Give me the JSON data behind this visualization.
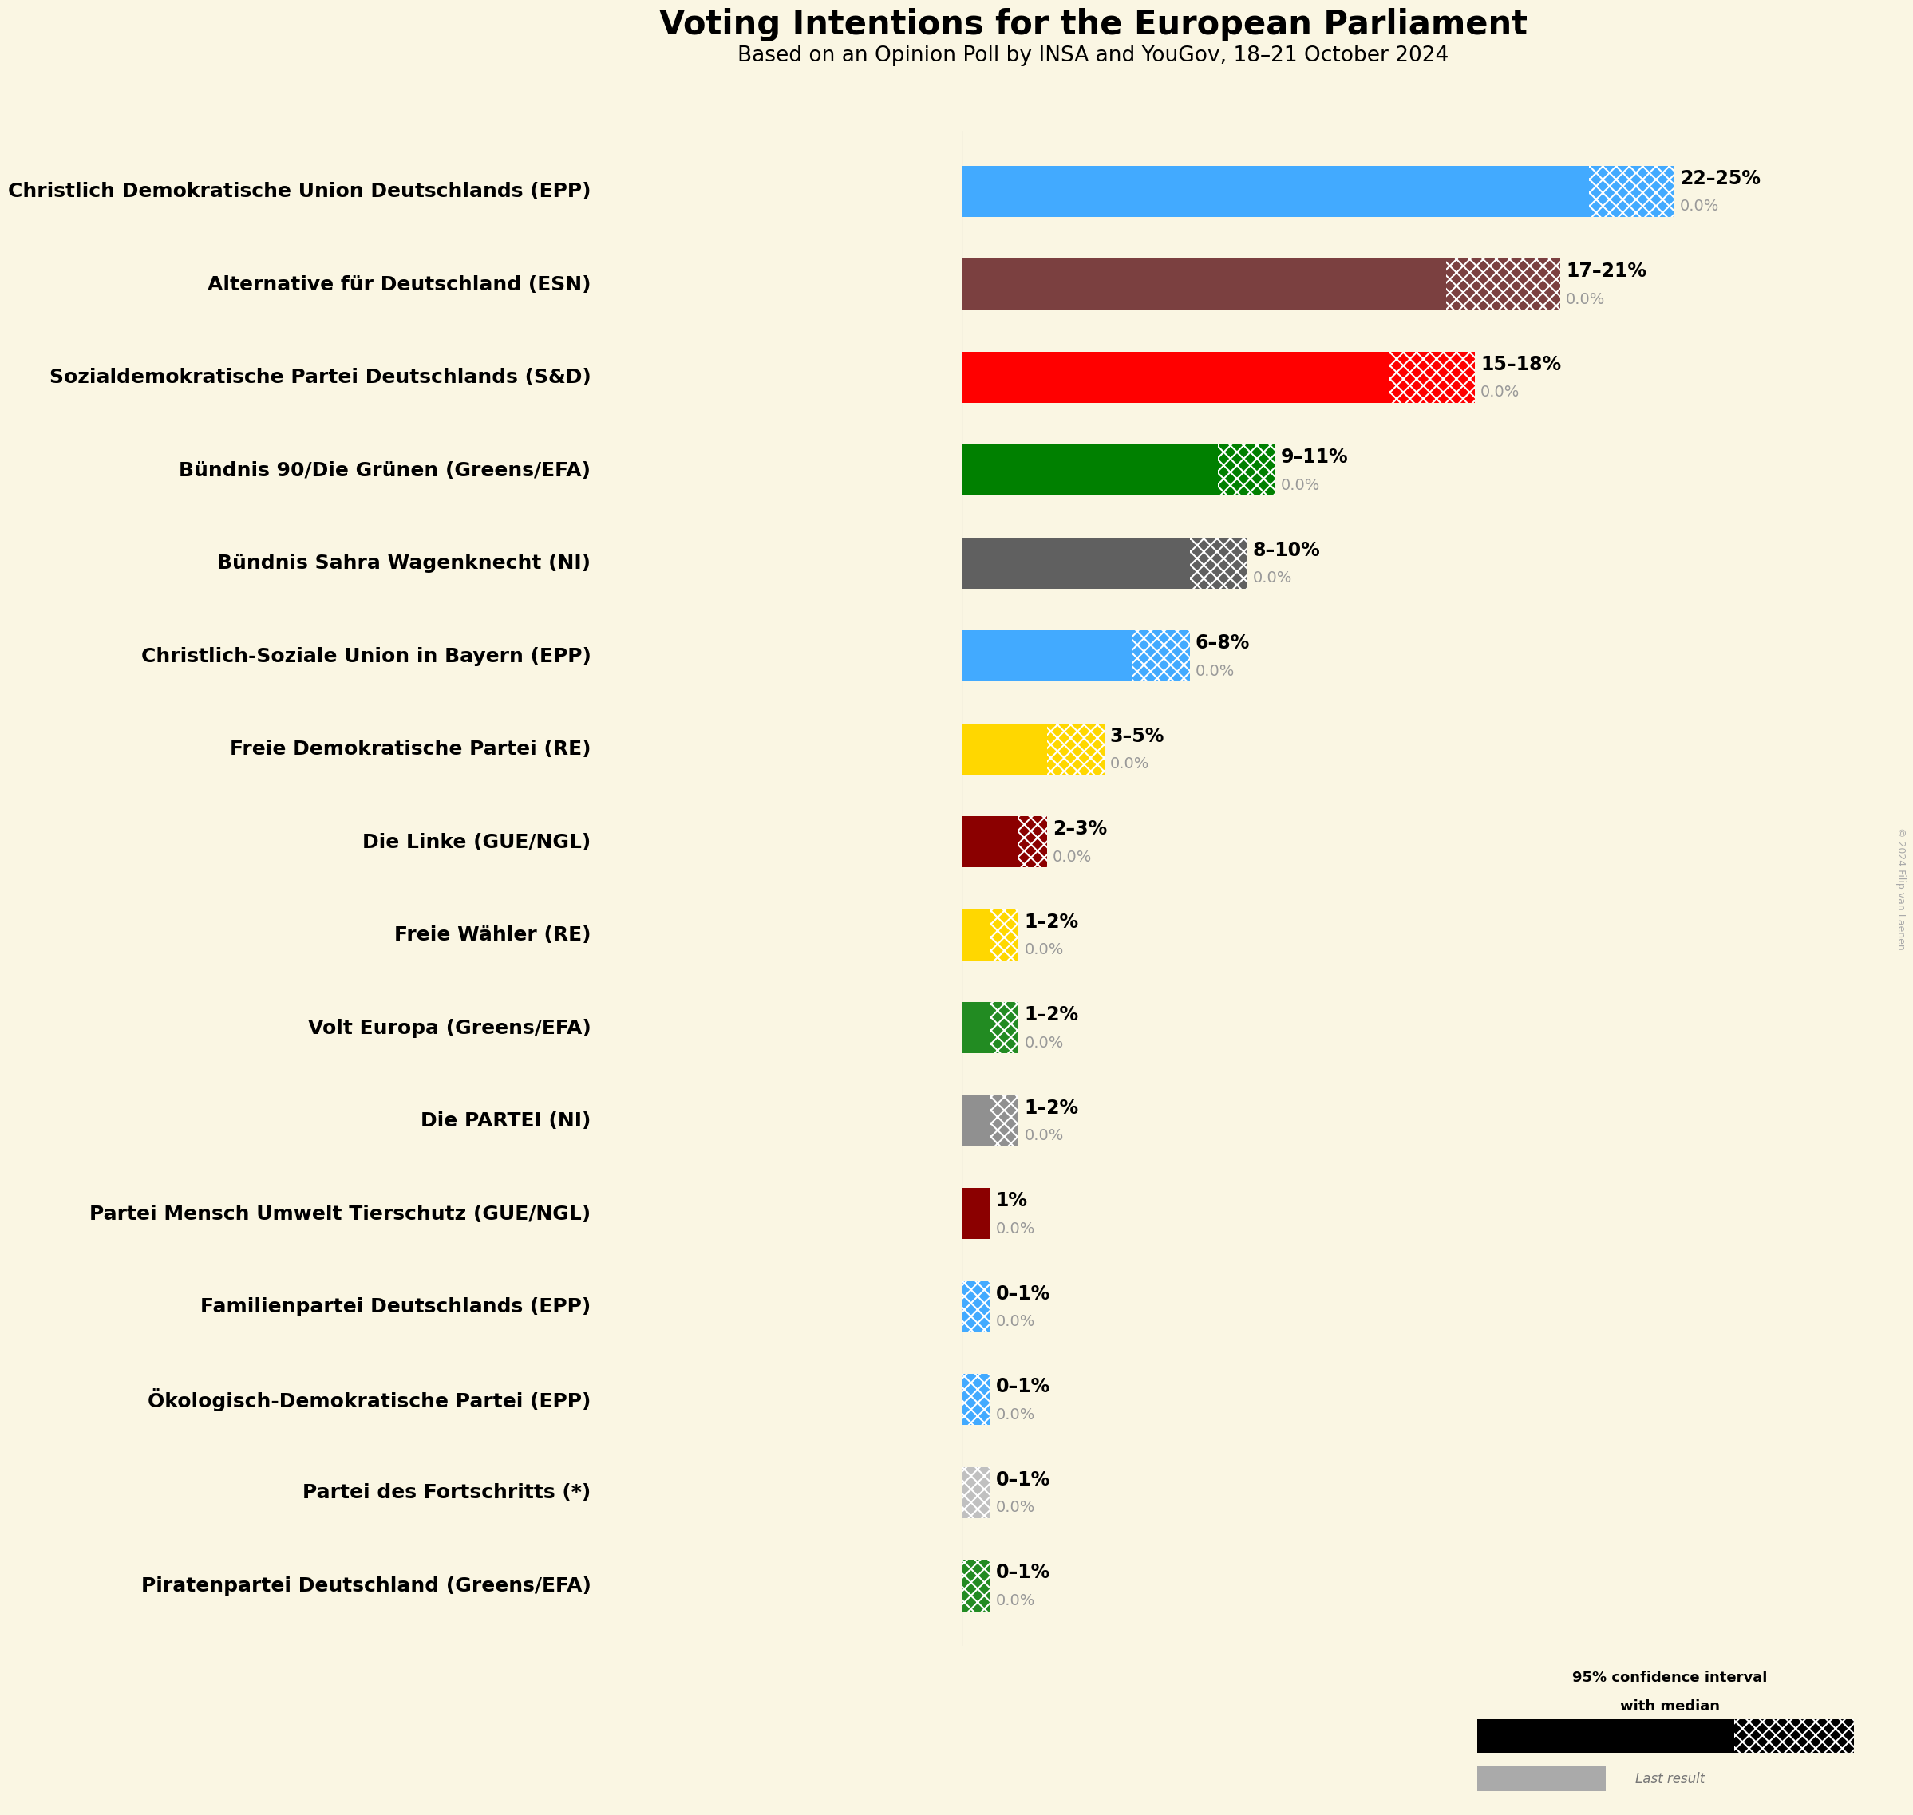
{
  "title": "Voting Intentions for the European Parliament",
  "subtitle": "Based on an Opinion Poll by INSA and YouGov, 18–21 October 2024",
  "background_color": "#FAF6E3",
  "copyright": "© 2024 Filip van Laenen",
  "parties": [
    {
      "name": "Christlich Demokratische Union Deutschlands (EPP)",
      "median": 22,
      "ci_low": 22,
      "ci_high": 25,
      "color": "#42AAFF",
      "label": "22–25%",
      "last_result": 0.0
    },
    {
      "name": "Alternative für Deutschland (ESN)",
      "median": 17,
      "ci_low": 17,
      "ci_high": 21,
      "color": "#7B4040",
      "label": "17–21%",
      "last_result": 0.0
    },
    {
      "name": "Sozialdemokratische Partei Deutschlands (S&D)",
      "median": 15,
      "ci_low": 15,
      "ci_high": 18,
      "color": "#FF0000",
      "label": "15–18%",
      "last_result": 0.0
    },
    {
      "name": "Bündnis 90/Die Grünen (Greens/EFA)",
      "median": 9,
      "ci_low": 9,
      "ci_high": 11,
      "color": "#008000",
      "label": "9–11%",
      "last_result": 0.0
    },
    {
      "name": "Bündnis Sahra Wagenknecht (NI)",
      "median": 8,
      "ci_low": 8,
      "ci_high": 10,
      "color": "#606060",
      "label": "8–10%",
      "last_result": 0.0
    },
    {
      "name": "Christlich-Soziale Union in Bayern (EPP)",
      "median": 6,
      "ci_low": 6,
      "ci_high": 8,
      "color": "#42AAFF",
      "label": "6–8%",
      "last_result": 0.0
    },
    {
      "name": "Freie Demokratische Partei (RE)",
      "median": 3,
      "ci_low": 3,
      "ci_high": 5,
      "color": "#FFD700",
      "label": "3–5%",
      "last_result": 0.0
    },
    {
      "name": "Die Linke (GUE/NGL)",
      "median": 2,
      "ci_low": 2,
      "ci_high": 3,
      "color": "#8B0000",
      "label": "2–3%",
      "last_result": 0.0
    },
    {
      "name": "Freie Wähler (RE)",
      "median": 1,
      "ci_low": 1,
      "ci_high": 2,
      "color": "#FFD700",
      "label": "1–2%",
      "last_result": 0.0
    },
    {
      "name": "Volt Europa (Greens/EFA)",
      "median": 1,
      "ci_low": 1,
      "ci_high": 2,
      "color": "#228B22",
      "label": "1–2%",
      "last_result": 0.0
    },
    {
      "name": "Die PARTEI (NI)",
      "median": 1,
      "ci_low": 1,
      "ci_high": 2,
      "color": "#909090",
      "label": "1–2%",
      "last_result": 0.0
    },
    {
      "name": "Partei Mensch Umwelt Tierschutz (GUE/NGL)",
      "median": 1,
      "ci_low": 1,
      "ci_high": 1,
      "color": "#8B0000",
      "label": "1%",
      "last_result": 0.0
    },
    {
      "name": "Familienpartei Deutschlands (EPP)",
      "median": 0,
      "ci_low": 0,
      "ci_high": 1,
      "color": "#42AAFF",
      "label": "0–1%",
      "last_result": 0.0
    },
    {
      "name": "Ökologisch-Demokratische Partei (EPP)",
      "median": 0,
      "ci_low": 0,
      "ci_high": 1,
      "color": "#42AAFF",
      "label": "0–1%",
      "last_result": 0.0
    },
    {
      "name": "Partei des Fortschritts (*)",
      "median": 0,
      "ci_low": 0,
      "ci_high": 1,
      "color": "#C0C0C0",
      "label": "0–1%",
      "last_result": 0.0
    },
    {
      "name": "Piratenpartei Deutschland (Greens/EFA)",
      "median": 0,
      "ci_low": 0,
      "ci_high": 1,
      "color": "#228B22",
      "label": "0–1%",
      "last_result": 0.0
    }
  ],
  "xlim_max": 26,
  "bar_height": 0.55,
  "title_fontsize": 30,
  "subtitle_fontsize": 19,
  "party_fontsize": 18,
  "label_fontsize": 17,
  "figsize": [
    20.64,
    23.74
  ]
}
